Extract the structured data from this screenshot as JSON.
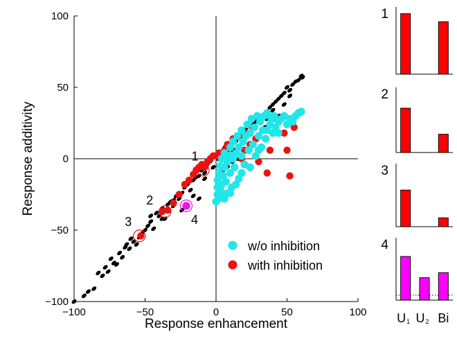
{
  "chart_data": [
    {
      "type": "scatter",
      "title": "",
      "xlabel": "Response enhancement",
      "ylabel": "Response additivity",
      "xlim": [
        -100,
        100
      ],
      "ylim": [
        -100,
        100
      ],
      "xticks": [
        -100,
        -50,
        0,
        50,
        100
      ],
      "yticks": [
        -100,
        -50,
        0,
        50,
        100
      ],
      "xtick_labels": [
        "−100",
        "−50",
        "0",
        "50",
        "100"
      ],
      "ytick_labels": [
        "−100",
        "−50",
        "0",
        "50",
        "100"
      ],
      "axes_through_origin": true,
      "grid": false,
      "legend_position": "bottom-right",
      "series": [
        {
          "name": "",
          "color": "#000000",
          "points": [
            [
              -100,
              -100
            ],
            [
              -93,
              -96
            ],
            [
              -90,
              -93
            ],
            [
              -86,
              -91
            ],
            [
              -83,
              -80
            ],
            [
              -80,
              -82
            ],
            [
              -78,
              -76
            ],
            [
              -76,
              -79
            ],
            [
              -74,
              -70
            ],
            [
              -72,
              -73
            ],
            [
              -70,
              -74
            ],
            [
              -68,
              -66
            ],
            [
              -66,
              -69
            ],
            [
              -63,
              -60
            ],
            [
              -61,
              -63
            ],
            [
              -58,
              -58
            ],
            [
              -56,
              -60
            ],
            [
              -54,
              -55
            ],
            [
              -52,
              -52
            ],
            [
              -50,
              -50
            ],
            [
              -48,
              -47
            ],
            [
              -46,
              -44
            ],
            [
              -44,
              -49
            ],
            [
              -42,
              -38
            ],
            [
              -40,
              -40
            ],
            [
              -38,
              -35
            ],
            [
              -36,
              -42
            ],
            [
              -34,
              -32
            ],
            [
              -32,
              -30
            ],
            [
              -30,
              -33
            ],
            [
              -28,
              -26
            ],
            [
              -26,
              -28
            ],
            [
              -24,
              -24
            ],
            [
              -22,
              -20
            ],
            [
              -20,
              -18
            ],
            [
              -18,
              -22
            ],
            [
              -16,
              -15
            ],
            [
              -14,
              -13
            ],
            [
              -12,
              -12
            ],
            [
              -10,
              -8
            ],
            [
              -8,
              -10
            ],
            [
              -6,
              -4
            ],
            [
              -4,
              -2
            ],
            [
              -2,
              -6
            ],
            [
              2,
              0
            ],
            [
              4,
              2
            ],
            [
              6,
              8
            ],
            [
              8,
              4
            ],
            [
              10,
              10
            ],
            [
              12,
              6
            ],
            [
              14,
              12
            ],
            [
              16,
              16
            ],
            [
              18,
              14
            ],
            [
              20,
              20
            ],
            [
              22,
              22
            ],
            [
              24,
              18
            ],
            [
              26,
              24
            ],
            [
              28,
              26
            ],
            [
              30,
              28
            ],
            [
              32,
              30
            ],
            [
              34,
              22
            ],
            [
              36,
              32
            ],
            [
              38,
              36
            ],
            [
              40,
              38
            ],
            [
              42,
              40
            ],
            [
              44,
              42
            ],
            [
              46,
              44
            ],
            [
              48,
              46
            ],
            [
              50,
              50
            ],
            [
              52,
              48
            ],
            [
              54,
              52
            ],
            [
              56,
              54
            ],
            [
              58,
              55
            ],
            [
              60,
              58
            ],
            [
              61,
              57
            ],
            [
              -64,
              -62
            ],
            [
              -60,
              -56
            ],
            [
              -46,
              -40
            ],
            [
              -38,
              -42
            ],
            [
              -30,
              -29
            ],
            [
              -24,
              -36
            ],
            [
              -16,
              -26
            ],
            [
              -12,
              -28
            ],
            [
              -8,
              -14
            ],
            [
              4,
              -10
            ],
            [
              8,
              -6
            ],
            [
              12,
              -2
            ],
            [
              16,
              0
            ],
            [
              20,
              6
            ],
            [
              24,
              8
            ],
            [
              28,
              14
            ],
            [
              32,
              20
            ],
            [
              36,
              28
            ],
            [
              40,
              34
            ],
            [
              44,
              30
            ],
            [
              48,
              38
            ],
            [
              52,
              44
            ]
          ]
        },
        {
          "name": "with inhibition",
          "color": "#ee1111",
          "points": [
            [
              -53,
              -54
            ],
            [
              -38,
              -37
            ],
            [
              -34,
              -36
            ],
            [
              -30,
              -31
            ],
            [
              -26,
              -25
            ],
            [
              -22,
              -18
            ],
            [
              -19,
              -15
            ],
            [
              -16,
              -11
            ],
            [
              -14,
              -8
            ],
            [
              -12,
              -6
            ],
            [
              -10,
              -4
            ],
            [
              -8,
              -6
            ],
            [
              -6,
              -2
            ],
            [
              -4,
              0
            ],
            [
              -2,
              2
            ],
            [
              0,
              2
            ],
            [
              2,
              4
            ],
            [
              4,
              -8
            ],
            [
              6,
              6
            ],
            [
              8,
              10
            ],
            [
              10,
              8
            ],
            [
              12,
              14
            ],
            [
              14,
              4
            ],
            [
              16,
              16
            ],
            [
              18,
              0
            ],
            [
              20,
              6
            ],
            [
              22,
              18
            ],
            [
              24,
              10
            ],
            [
              26,
              22
            ],
            [
              28,
              14
            ],
            [
              30,
              -2
            ],
            [
              32,
              8
            ],
            [
              34,
              20
            ],
            [
              36,
              -10
            ],
            [
              38,
              6
            ],
            [
              42,
              28
            ],
            [
              48,
              18
            ],
            [
              50,
              6
            ],
            [
              52,
              -12
            ],
            [
              55,
              22
            ]
          ]
        },
        {
          "name": "w/o inhibition",
          "color": "#22e6ea",
          "points": [
            [
              0,
              -30
            ],
            [
              1,
              -25
            ],
            [
              1,
              -20
            ],
            [
              1,
              -15
            ],
            [
              2,
              -10
            ],
            [
              2,
              -28
            ],
            [
              3,
              -5
            ],
            [
              3,
              -22
            ],
            [
              4,
              -18
            ],
            [
              4,
              0
            ],
            [
              5,
              -12
            ],
            [
              5,
              -26
            ],
            [
              6,
              -6
            ],
            [
              6,
              4
            ],
            [
              7,
              -16
            ],
            [
              8,
              -2
            ],
            [
              8,
              -24
            ],
            [
              9,
              2
            ],
            [
              10,
              -10
            ],
            [
              10,
              8
            ],
            [
              11,
              -20
            ],
            [
              12,
              0
            ],
            [
              12,
              12
            ],
            [
              13,
              -6
            ],
            [
              14,
              4
            ],
            [
              15,
              16
            ],
            [
              16,
              -14
            ],
            [
              16,
              8
            ],
            [
              18,
              2
            ],
            [
              18,
              20
            ],
            [
              19,
              12
            ],
            [
              20,
              -4
            ],
            [
              21,
              16
            ],
            [
              22,
              24
            ],
            [
              23,
              6
            ],
            [
              24,
              18
            ],
            [
              25,
              28
            ],
            [
              26,
              10
            ],
            [
              27,
              22
            ],
            [
              28,
              2
            ],
            [
              29,
              30
            ],
            [
              30,
              16
            ],
            [
              31,
              26
            ],
            [
              32,
              8
            ],
            [
              33,
              20
            ],
            [
              34,
              30
            ],
            [
              35,
              14
            ],
            [
              36,
              32
            ],
            [
              38,
              24
            ],
            [
              39,
              28
            ],
            [
              40,
              18
            ],
            [
              41,
              30
            ],
            [
              42,
              22
            ],
            [
              44,
              26
            ],
            [
              46,
              28
            ],
            [
              48,
              30
            ],
            [
              50,
              24
            ],
            [
              52,
              28
            ],
            [
              54,
              26
            ],
            [
              56,
              30
            ],
            [
              58,
              32
            ],
            [
              60,
              33
            ],
            [
              44,
              18
            ],
            [
              36,
              20
            ],
            [
              30,
              6
            ],
            [
              24,
              -6
            ],
            [
              18,
              -10
            ],
            [
              14,
              -18
            ],
            [
              10,
              -24
            ],
            [
              6,
              -28
            ]
          ]
        },
        {
          "name": "",
          "color": "#ee11ee",
          "points": [
            [
              -21,
              -33
            ]
          ]
        }
      ],
      "highlighted_points": [
        {
          "label": "1",
          "x": -9,
          "y": -8,
          "color": "#ee1111"
        },
        {
          "label": "2",
          "x": -36,
          "y": -37,
          "color": "#ee1111"
        },
        {
          "label": "3",
          "x": -54,
          "y": -54,
          "color": "#ee1111"
        },
        {
          "label": "4",
          "x": -21,
          "y": -33,
          "color": "#ee11ee"
        }
      ],
      "legend_order": [
        "w/o inhibition",
        "with inhibition"
      ]
    },
    {
      "type": "bar",
      "panels": [
        {
          "label": "1",
          "color": "#ff0000",
          "categories": [
            "U₁",
            "U₂",
            "Bi"
          ],
          "values": [
            0.9,
            0,
            0.78
          ]
        },
        {
          "label": "2",
          "color": "#ff0000",
          "categories": [
            "U₁",
            "U₂",
            "Bi"
          ],
          "values": [
            0.68,
            0,
            0.28
          ]
        },
        {
          "label": "3",
          "color": "#ff0000",
          "categories": [
            "U₁",
            "U₂",
            "Bi"
          ],
          "values": [
            0.58,
            0,
            0.14
          ]
        },
        {
          "label": "4",
          "color": "#ff00ff",
          "categories": [
            "U₁",
            "U₂",
            "Bi"
          ],
          "values": [
            0.7,
            0.36,
            0.44
          ],
          "dotted_reference": 0.08
        }
      ],
      "xtick_labels": [
        {
          "main": "U",
          "sub": "1"
        },
        {
          "main": "U",
          "sub": "2"
        },
        {
          "main": "Bi",
          "sub": ""
        }
      ]
    }
  ]
}
